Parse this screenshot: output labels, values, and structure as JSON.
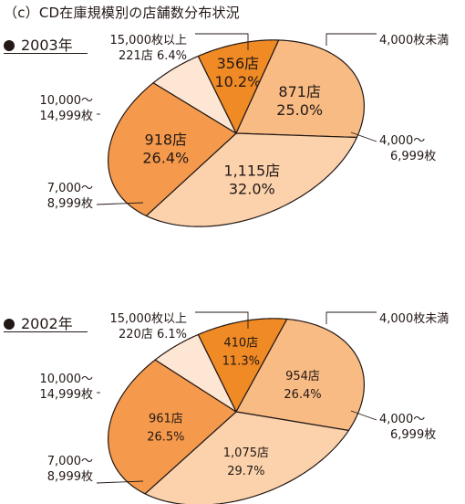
{
  "title": "（c）CD在庫規模別の店舗数分布状況",
  "chart_data": [
    {
      "type": "pie",
      "year_label": "2003年",
      "categories": [
        "4,000枚未満",
        "4,000〜6,999枚",
        "7,000〜8,999枚",
        "10,000〜14,999枚",
        "15,000枚以上"
      ],
      "slices": [
        {
          "category": "4,000枚未満",
          "stores": 356,
          "count_label": "356店",
          "percent": 10.2,
          "percent_label": "10.2%",
          "color": "#ef8a24"
        },
        {
          "category": "4,000〜6,999枚",
          "stores": 871,
          "count_label": "871店",
          "percent": 25.0,
          "percent_label": "25.0%",
          "color": "#f8bb84"
        },
        {
          "category": "7,000〜8,999枚",
          "stores": 1115,
          "count_label": "1,115店",
          "percent": 32.0,
          "percent_label": "32.0%",
          "color": "#fbd2ac"
        },
        {
          "category": "10,000〜14,999枚",
          "stores": 918,
          "count_label": "918店",
          "percent": 26.4,
          "percent_label": "26.4%",
          "color": "#f59a4c"
        },
        {
          "category": "15,000枚以上",
          "stores": 221,
          "count_label": "221店",
          "percent": 6.4,
          "percent_label": "6.4%",
          "color": "#fde6d3"
        }
      ],
      "callout_labels": {
        "under4000": "4,000枚未満",
        "r4000_line1": "4,000〜",
        "r4000_line2": "6,999枚",
        "r7000_line1": "7,000〜",
        "r7000_line2": "8,999枚",
        "r10000_line1": "10,000〜",
        "r10000_line2": "14,999枚",
        "over15000_line1": "15,000枚以上",
        "over15000_line2": "221店 6.4%"
      }
    },
    {
      "type": "pie",
      "year_label": "2002年",
      "categories": [
        "4,000枚未満",
        "4,000〜6,999枚",
        "7,000〜8,999枚",
        "10,000〜14,999枚",
        "15,000枚以上"
      ],
      "slices": [
        {
          "category": "4,000枚未満",
          "stores": 410,
          "count_label": "410店",
          "percent": 11.3,
          "percent_label": "11.3%",
          "color": "#ef8a24"
        },
        {
          "category": "4,000〜6,999枚",
          "stores": 954,
          "count_label": "954店",
          "percent": 26.4,
          "percent_label": "26.4%",
          "color": "#f8bb84"
        },
        {
          "category": "7,000〜8,999枚",
          "stores": 1075,
          "count_label": "1,075店",
          "percent": 29.7,
          "percent_label": "29.7%",
          "color": "#fbd2ac"
        },
        {
          "category": "10,000〜14,999枚",
          "stores": 961,
          "count_label": "961店",
          "percent": 26.5,
          "percent_label": "26.5%",
          "color": "#f59a4c"
        },
        {
          "category": "15,000枚以上",
          "stores": 220,
          "count_label": "220店",
          "percent": 6.1,
          "percent_label": "6.1%",
          "color": "#fde6d3"
        }
      ],
      "callout_labels": {
        "under4000": "4,000枚未満",
        "r4000_line1": "4,000〜",
        "r4000_line2": "6,999枚",
        "r7000_line1": "7,000〜",
        "r7000_line2": "8,999枚",
        "r10000_line1": "10,000〜",
        "r10000_line2": "14,999枚",
        "over15000_line1": "15,000枚以上",
        "over15000_line2": "220店 6.1%"
      }
    }
  ]
}
